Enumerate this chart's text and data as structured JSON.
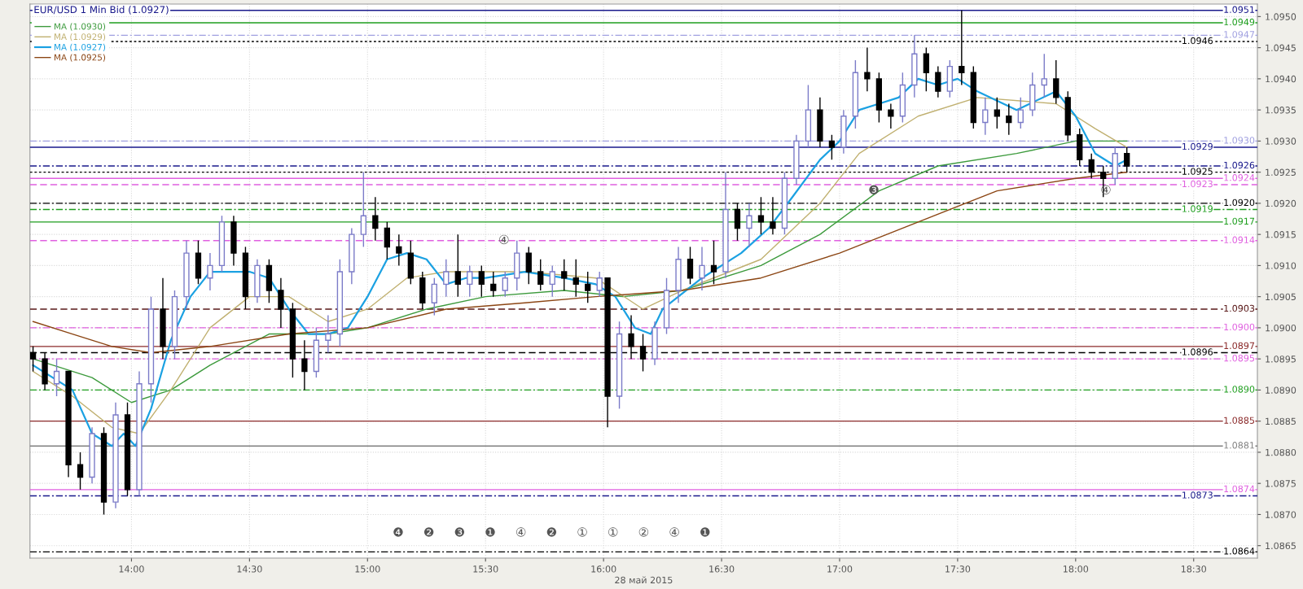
{
  "chart_data": {
    "type": "candlestick",
    "title": "EUR/USD 1 Min Bid (1.0927)",
    "xlabel": "28 май 2015",
    "xlim": [
      13.57,
      18.77
    ],
    "ylim": [
      1.0863,
      1.0952
    ],
    "xticks": [
      {
        "value": 14.0,
        "label": "14:00"
      },
      {
        "value": 14.5,
        "label": "14:30"
      },
      {
        "value": 15.0,
        "label": "15:00"
      },
      {
        "value": 15.5,
        "label": "15:30"
      },
      {
        "value": 16.0,
        "label": "16:00"
      },
      {
        "value": 16.5,
        "label": "16:30"
      },
      {
        "value": 17.0,
        "label": "17:00"
      },
      {
        "value": 17.5,
        "label": "17:30"
      },
      {
        "value": 18.0,
        "label": "18:00"
      },
      {
        "value": 18.5,
        "label": "18:30"
      }
    ],
    "yticks": [
      {
        "value": 1.0865,
        "label": "1.0865"
      },
      {
        "value": 1.087,
        "label": "1.0870"
      },
      {
        "value": 1.0875,
        "label": "1.0875"
      },
      {
        "value": 1.088,
        "label": "1.0880"
      },
      {
        "value": 1.0885,
        "label": "1.0885"
      },
      {
        "value": 1.089,
        "label": "1.0890"
      },
      {
        "value": 1.0895,
        "label": "1.0895"
      },
      {
        "value": 1.09,
        "label": "1.0900"
      },
      {
        "value": 1.0905,
        "label": "1.0905"
      },
      {
        "value": 1.091,
        "label": "1.0910"
      },
      {
        "value": 1.0915,
        "label": "1.0915"
      },
      {
        "value": 1.092,
        "label": "1.0920"
      },
      {
        "value": 1.0925,
        "label": "1.0925"
      },
      {
        "value": 1.093,
        "label": "1.0930"
      },
      {
        "value": 1.0935,
        "label": "1.0935"
      },
      {
        "value": 1.094,
        "label": "1.0940"
      },
      {
        "value": 1.0945,
        "label": "1.0945"
      },
      {
        "value": 1.095,
        "label": "1.0950"
      }
    ],
    "grid": true,
    "legend": "top left",
    "series": [
      {
        "colors": [
          "#000000",
          "#000000",
          "#7b7bc8",
          "#000000",
          "#000000",
          "#7b7bc8",
          "#000000",
          "#7b7bc8",
          "#000000",
          "#7b7bc8",
          "#7b7bc8",
          "#000000",
          "#7b7bc8",
          "#7b7bc8",
          "#000000",
          "#7b7bc8",
          "#7b7bc8",
          "#000000",
          "#000000",
          "#7b7bc8",
          "#000000",
          "#000000",
          "#000000",
          "#000000",
          "#7b7bc8",
          "#7b7bc8",
          "#7b7bc8",
          "#7b7bc8",
          "#7b7bc8",
          "#000000",
          "#000000",
          "#000000",
          "#000000",
          "#000000",
          "#7b7bc8",
          "#7b7bc8",
          "#000000",
          "#7b7bc8",
          "#000000",
          "#000000",
          "#7b7bc8",
          "#7b7bc8",
          "#000000",
          "#000000",
          "#7b7bc8",
          "#000000",
          "#000000",
          "#000000",
          "#7b7bc8",
          "#000000",
          "#7b7bc8",
          "#000000",
          "#000000",
          "#7b7bc8",
          "#7b7bc8",
          "#7b7bc8",
          "#000000",
          "#7b7bc8",
          "#000000",
          "#7b7bc8",
          "#000000",
          "#7b7bc8",
          "#000000",
          "#000000",
          "#7b7bc8",
          "#7b7bc8",
          "#7b7bc8",
          "#000000",
          "#000000",
          "#7b7bc8",
          "#7b7bc8",
          "#000000",
          "#000000",
          "#000000",
          "#7b7bc8",
          "#7b7bc8",
          "#000000",
          "#000000",
          "#7b7bc8",
          "#000000",
          "#000000",
          "#7b7bc8",
          "#000000",
          "#000000",
          "#7b7bc8",
          "#7b7bc8",
          "#7b7bc8",
          "#000000",
          "#000000",
          "#000000",
          "#000000",
          "#000000",
          "#7b7bc8",
          "#000000"
        ],
        "x": [
          13.583,
          13.633,
          13.683,
          13.733,
          13.783,
          13.833,
          13.883,
          13.933,
          13.983,
          14.033,
          14.083,
          14.133,
          14.183,
          14.233,
          14.283,
          14.333,
          14.383,
          14.433,
          14.483,
          14.533,
          14.583,
          14.633,
          14.683,
          14.733,
          14.783,
          14.833,
          14.883,
          14.933,
          14.983,
          15.033,
          15.083,
          15.133,
          15.183,
          15.233,
          15.283,
          15.333,
          15.383,
          15.433,
          15.483,
          15.533,
          15.583,
          15.633,
          15.683,
          15.733,
          15.783,
          15.833,
          15.883,
          15.933,
          15.983,
          16.017,
          16.067,
          16.117,
          16.167,
          16.217,
          16.267,
          16.317,
          16.367,
          16.417,
          16.467,
          16.517,
          16.567,
          16.617,
          16.667,
          16.717,
          16.767,
          16.817,
          16.867,
          16.917,
          16.967,
          17.017,
          17.067,
          17.117,
          17.167,
          17.217,
          17.267,
          17.317,
          17.367,
          17.417,
          17.467,
          17.517,
          17.567,
          17.617,
          17.667,
          17.717,
          17.767,
          17.817,
          17.867,
          17.917,
          17.967,
          18.017,
          18.067,
          18.117,
          18.167,
          18.217
        ],
        "ohlc": [
          [
            1.0896,
            1.0897,
            1.0893,
            1.0895
          ],
          [
            1.0895,
            1.0896,
            1.089,
            1.0891
          ],
          [
            1.0891,
            1.0895,
            1.0889,
            1.0893
          ],
          [
            1.0893,
            1.0893,
            1.0876,
            1.0878
          ],
          [
            1.0878,
            1.088,
            1.0874,
            1.0876
          ],
          [
            1.0876,
            1.0884,
            1.0875,
            1.0883
          ],
          [
            1.0883,
            1.0884,
            1.087,
            1.0872
          ],
          [
            1.0872,
            1.0888,
            1.0871,
            1.0886
          ],
          [
            1.0886,
            1.0888,
            1.0873,
            1.0874
          ],
          [
            1.0874,
            1.0893,
            1.0873,
            1.0891
          ],
          [
            1.0891,
            1.0905,
            1.0888,
            1.0903
          ],
          [
            1.0903,
            1.0908,
            1.0895,
            1.0897
          ],
          [
            1.0897,
            1.0906,
            1.0895,
            1.0905
          ],
          [
            1.0905,
            1.0914,
            1.0903,
            1.0912
          ],
          [
            1.0912,
            1.0914,
            1.0907,
            1.0908
          ],
          [
            1.0908,
            1.0912,
            1.0906,
            1.091
          ],
          [
            1.091,
            1.0918,
            1.0909,
            1.0917
          ],
          [
            1.0917,
            1.0918,
            1.091,
            1.0912
          ],
          [
            1.0912,
            1.0913,
            1.0903,
            1.0905
          ],
          [
            1.0905,
            1.0911,
            1.0904,
            1.091
          ],
          [
            1.091,
            1.0911,
            1.0904,
            1.0906
          ],
          [
            1.0906,
            1.0908,
            1.09,
            1.0903
          ],
          [
            1.0903,
            1.0904,
            1.0892,
            1.0895
          ],
          [
            1.0895,
            1.0898,
            1.089,
            1.0893
          ],
          [
            1.0893,
            1.09,
            1.0892,
            1.0898
          ],
          [
            1.0898,
            1.0902,
            1.0896,
            1.0899
          ],
          [
            1.0899,
            1.0911,
            1.0897,
            1.0909
          ],
          [
            1.0909,
            1.0916,
            1.0907,
            1.0915
          ],
          [
            1.0915,
            1.0925,
            1.0913,
            1.0918
          ],
          [
            1.0918,
            1.0921,
            1.0914,
            1.0916
          ],
          [
            1.0916,
            1.0917,
            1.0911,
            1.0913
          ],
          [
            1.0913,
            1.0915,
            1.091,
            1.0912
          ],
          [
            1.0912,
            1.0914,
            1.0907,
            1.0908
          ],
          [
            1.0908,
            1.0909,
            1.0903,
            1.0904
          ],
          [
            1.0904,
            1.0908,
            1.0902,
            1.0907
          ],
          [
            1.0907,
            1.0911,
            1.0905,
            1.0909
          ],
          [
            1.0909,
            1.0915,
            1.0905,
            1.0907
          ],
          [
            1.0907,
            1.091,
            1.0905,
            1.0909
          ],
          [
            1.0909,
            1.091,
            1.0905,
            1.0907
          ],
          [
            1.0907,
            1.0909,
            1.0905,
            1.0906
          ],
          [
            1.0906,
            1.0909,
            1.0905,
            1.0908
          ],
          [
            1.0908,
            1.0914,
            1.0906,
            1.0912
          ],
          [
            1.0912,
            1.0913,
            1.0907,
            1.0909
          ],
          [
            1.0909,
            1.0911,
            1.0906,
            1.0907
          ],
          [
            1.0907,
            1.091,
            1.0905,
            1.0909
          ],
          [
            1.0909,
            1.0911,
            1.0906,
            1.0908
          ],
          [
            1.0908,
            1.0911,
            1.0905,
            1.0907
          ],
          [
            1.0907,
            1.0909,
            1.0904,
            1.0906
          ],
          [
            1.0906,
            1.0909,
            1.0905,
            1.0908
          ],
          [
            1.0908,
            1.0908,
            1.0884,
            1.0889
          ],
          [
            1.0889,
            1.0901,
            1.0887,
            1.0899
          ],
          [
            1.0899,
            1.0902,
            1.0895,
            1.0897
          ],
          [
            1.0897,
            1.0899,
            1.0893,
            1.0895
          ],
          [
            1.0895,
            1.0901,
            1.0894,
            1.09
          ],
          [
            1.09,
            1.0908,
            1.0899,
            1.0906
          ],
          [
            1.0906,
            1.0913,
            1.0904,
            1.0911
          ],
          [
            1.0911,
            1.0913,
            1.0907,
            1.0908
          ],
          [
            1.0908,
            1.0913,
            1.0906,
            1.091
          ],
          [
            1.091,
            1.0914,
            1.0907,
            1.0909
          ],
          [
            1.0909,
            1.0925,
            1.0908,
            1.0919
          ],
          [
            1.0919,
            1.092,
            1.0914,
            1.0916
          ],
          [
            1.0916,
            1.092,
            1.0913,
            1.0918
          ],
          [
            1.0918,
            1.0921,
            1.0915,
            1.0917
          ],
          [
            1.0917,
            1.0921,
            1.0915,
            1.0916
          ],
          [
            1.0916,
            1.0925,
            1.0915,
            1.0924
          ],
          [
            1.0924,
            1.0931,
            1.0923,
            1.093
          ],
          [
            1.093,
            1.0939,
            1.0929,
            1.0935
          ],
          [
            1.0935,
            1.0937,
            1.0929,
            1.093
          ],
          [
            1.093,
            1.0931,
            1.0927,
            1.0929
          ],
          [
            1.0929,
            1.0935,
            1.0928,
            1.0934
          ],
          [
            1.0934,
            1.0943,
            1.0932,
            1.0941
          ],
          [
            1.0941,
            1.0945,
            1.0938,
            1.094
          ],
          [
            1.094,
            1.0941,
            1.0933,
            1.0935
          ],
          [
            1.0935,
            1.0936,
            1.0932,
            1.0934
          ],
          [
            1.0934,
            1.0941,
            1.0933,
            1.0939
          ],
          [
            1.0939,
            1.0947,
            1.0937,
            1.0944
          ],
          [
            1.0944,
            1.0945,
            1.0938,
            1.0941
          ],
          [
            1.0941,
            1.0942,
            1.0937,
            1.0938
          ],
          [
            1.0938,
            1.0943,
            1.0937,
            1.0942
          ],
          [
            1.0942,
            1.0951,
            1.0939,
            1.0941
          ],
          [
            1.0941,
            1.0942,
            1.0932,
            1.0933
          ],
          [
            1.0933,
            1.0937,
            1.0931,
            1.0935
          ],
          [
            1.0935,
            1.0937,
            1.0932,
            1.0934
          ],
          [
            1.0934,
            1.0936,
            1.0931,
            1.0933
          ],
          [
            1.0933,
            1.0937,
            1.0932,
            1.0935
          ],
          [
            1.0935,
            1.0941,
            1.0934,
            1.0939
          ],
          [
            1.0939,
            1.0944,
            1.0937,
            1.094
          ],
          [
            1.094,
            1.0943,
            1.0936,
            1.0937
          ],
          [
            1.0937,
            1.0938,
            1.093,
            1.0931
          ],
          [
            1.0931,
            1.0932,
            1.0926,
            1.0927
          ],
          [
            1.0927,
            1.0928,
            1.0924,
            1.0925
          ],
          [
            1.0925,
            1.0926,
            1.0921,
            1.0924
          ],
          [
            1.0924,
            1.0929,
            1.0923,
            1.0928
          ],
          [
            1.0928,
            1.0929,
            1.0925,
            1.0926
          ]
        ]
      },
      {
        "type": "line",
        "name": "MA (1.0930)",
        "color": "#3c9a3c",
        "x": [
          13.583,
          13.833,
          14.0,
          14.167,
          14.333,
          14.583,
          14.833,
          15.0,
          15.25,
          15.5,
          15.833,
          16.083,
          16.333,
          16.667,
          16.917,
          17.167,
          17.417,
          17.75,
          18.0,
          18.217
        ],
        "values": [
          1.0895,
          1.0892,
          1.0888,
          1.089,
          1.0894,
          1.0899,
          1.0899,
          1.09,
          1.0903,
          1.0905,
          1.0906,
          1.0905,
          1.0906,
          1.091,
          1.0915,
          1.0922,
          1.0926,
          1.0928,
          1.093,
          1.093
        ]
      },
      {
        "type": "line",
        "name": "MA (1.0929)",
        "color": "#c0b070",
        "x": [
          13.583,
          13.75,
          13.917,
          14.033,
          14.167,
          14.333,
          14.5,
          14.667,
          14.833,
          15.0,
          15.167,
          15.333,
          15.667,
          15.967,
          16.167,
          16.333,
          16.667,
          16.917,
          17.083,
          17.333,
          17.583,
          17.917,
          18.083,
          18.217
        ],
        "values": [
          1.0893,
          1.0889,
          1.0884,
          1.0883,
          1.089,
          1.09,
          1.0905,
          1.0905,
          1.0901,
          1.0903,
          1.0908,
          1.0909,
          1.0909,
          1.0908,
          1.0903,
          1.0906,
          1.0911,
          1.092,
          1.0928,
          1.0934,
          1.0937,
          1.0936,
          1.0932,
          1.0929
        ]
      },
      {
        "type": "line",
        "name": "MA (1.0927)",
        "color": "#1ba1e2",
        "x": [
          13.583,
          13.75,
          13.833,
          13.917,
          13.967,
          14.017,
          14.083,
          14.167,
          14.25,
          14.333,
          14.417,
          14.5,
          14.583,
          14.667,
          14.75,
          14.833,
          14.917,
          15.0,
          15.083,
          15.167,
          15.25,
          15.333,
          15.417,
          15.5,
          15.667,
          15.833,
          15.967,
          16.05,
          16.133,
          16.2,
          16.25,
          16.417,
          16.583,
          16.7,
          16.8,
          16.917,
          17.0,
          17.083,
          17.167,
          17.25,
          17.333,
          17.417,
          17.5,
          17.583,
          17.75,
          17.917,
          18.0,
          18.083,
          18.167,
          18.217
        ],
        "values": [
          1.0894,
          1.089,
          1.0883,
          1.0881,
          1.0883,
          1.0881,
          1.0887,
          1.0898,
          1.0905,
          1.0909,
          1.0909,
          1.0909,
          1.0908,
          1.0903,
          1.0899,
          1.0899,
          1.09,
          1.0905,
          1.0911,
          1.0912,
          1.0911,
          1.0907,
          1.0908,
          1.0908,
          1.0909,
          1.0908,
          1.0907,
          1.0905,
          1.09,
          1.0899,
          1.0903,
          1.0908,
          1.0912,
          1.0916,
          1.0921,
          1.0927,
          1.093,
          1.0935,
          1.0936,
          1.0937,
          1.094,
          1.0939,
          1.094,
          1.0938,
          1.0935,
          1.0938,
          1.0934,
          1.0928,
          1.0926,
          1.0927
        ]
      },
      {
        "type": "line",
        "name": "MA (1.0925)",
        "color": "#8b4513",
        "x": [
          13.583,
          13.75,
          13.917,
          14.083,
          14.333,
          14.667,
          15.0,
          15.333,
          15.667,
          15.967,
          16.333,
          16.667,
          17.0,
          17.333,
          17.667,
          18.0,
          18.217
        ],
        "values": [
          1.0901,
          1.0899,
          1.0897,
          1.0896,
          1.0897,
          1.0899,
          1.09,
          1.0903,
          1.0904,
          1.0905,
          1.0906,
          1.0908,
          1.0912,
          1.0917,
          1.0922,
          1.0924,
          1.0925
        ]
      }
    ],
    "ref_lines": [
      {
        "axis": "y",
        "value": 1.0951,
        "label": "1.0951",
        "color": "#1a1a8c",
        "line_style": "solid"
      },
      {
        "axis": "y",
        "value": 1.0949,
        "label": "1.0949",
        "color": "#1e9e1e",
        "line_style": "solid"
      },
      {
        "axis": "y",
        "value": 1.0947,
        "label": "1.0947",
        "color": "#a0a0e0",
        "line_style": "dashdot"
      },
      {
        "axis": "y",
        "value": 1.0946,
        "label": "1.0946",
        "color": "#000000",
        "line_style": "dotted"
      },
      {
        "axis": "y",
        "value": 1.093,
        "label": "1.0930",
        "color": "#a0a0e0",
        "line_style": "dashdot"
      },
      {
        "axis": "y",
        "value": 1.0929,
        "label": "1.0929",
        "color": "#1a1a8c",
        "line_style": "solid"
      },
      {
        "axis": "y",
        "value": 1.0926,
        "label": "1.0926",
        "color": "#1a1a8c",
        "line_style": "dashdot"
      },
      {
        "axis": "y",
        "value": 1.0925,
        "label": "1.0925",
        "color": "#000000",
        "line_style": "dotted"
      },
      {
        "axis": "y",
        "value": 1.0924,
        "label": "1.0924",
        "color": "#e060e0",
        "line_style": "solid"
      },
      {
        "axis": "y",
        "value": 1.0923,
        "label": "1.0923",
        "color": "#e060e0",
        "line_style": "dashed"
      },
      {
        "axis": "y",
        "value": 1.092,
        "label": "1.0920",
        "color": "#000000",
        "line_style": "dashdot"
      },
      {
        "axis": "y",
        "value": 1.0919,
        "label": "1.0919",
        "color": "#1e9e1e",
        "line_style": "dashdot"
      },
      {
        "axis": "y",
        "value": 1.0917,
        "label": "1.0917",
        "color": "#1e9e1e",
        "line_style": "solid"
      },
      {
        "axis": "y",
        "value": 1.0914,
        "label": "1.0914",
        "color": "#e060e0",
        "line_style": "dashed"
      },
      {
        "axis": "y",
        "value": 1.0903,
        "label": "1.0903",
        "color": "#5a1a1a",
        "line_style": "dashed"
      },
      {
        "axis": "y",
        "value": 1.09,
        "label": "1.0900",
        "color": "#e060e0",
        "line_style": "dashdot"
      },
      {
        "axis": "y",
        "value": 1.0897,
        "label": "1.0897",
        "color": "#8b2a2a",
        "line_style": "solid"
      },
      {
        "axis": "y",
        "value": 1.0896,
        "label": "1.0896",
        "color": "#000000",
        "line_style": "dashed"
      },
      {
        "axis": "y",
        "value": 1.0895,
        "label": "1.0895",
        "color": "#e060e0",
        "line_style": "dashdot"
      },
      {
        "axis": "y",
        "value": 1.089,
        "label": "1.0890",
        "color": "#1e9e1e",
        "line_style": "dashdot"
      },
      {
        "axis": "y",
        "value": 1.0885,
        "label": "1.0885",
        "color": "#8b2a2a",
        "line_style": "solid"
      },
      {
        "axis": "y",
        "value": 1.0881,
        "label": "1.0881",
        "color": "#808080",
        "line_style": "solid"
      },
      {
        "axis": "y",
        "value": 1.0874,
        "label": "1.0874",
        "color": "#e060e0",
        "line_style": "solid"
      },
      {
        "axis": "y",
        "value": 1.0873,
        "label": "1.0873",
        "color": "#1a1a8c",
        "line_style": "dashdot"
      },
      {
        "axis": "y",
        "value": 1.0864,
        "label": "1.0864",
        "color": "#000000",
        "line_style": "dashdot"
      }
    ],
    "annotations": [
      "❹",
      "❷",
      "❸",
      "❶",
      "④",
      {
        "text": "④",
        "x": 15.578,
        "y": 1.0914
      },
      "❷",
      "①",
      "①",
      {
        "text": "❸",
        "x": 17.145,
        "y": 1.0922
      },
      "②",
      "④",
      {
        "text": "④",
        "x": 18.128,
        "y": 1.0922
      },
      "❶"
    ]
  }
}
